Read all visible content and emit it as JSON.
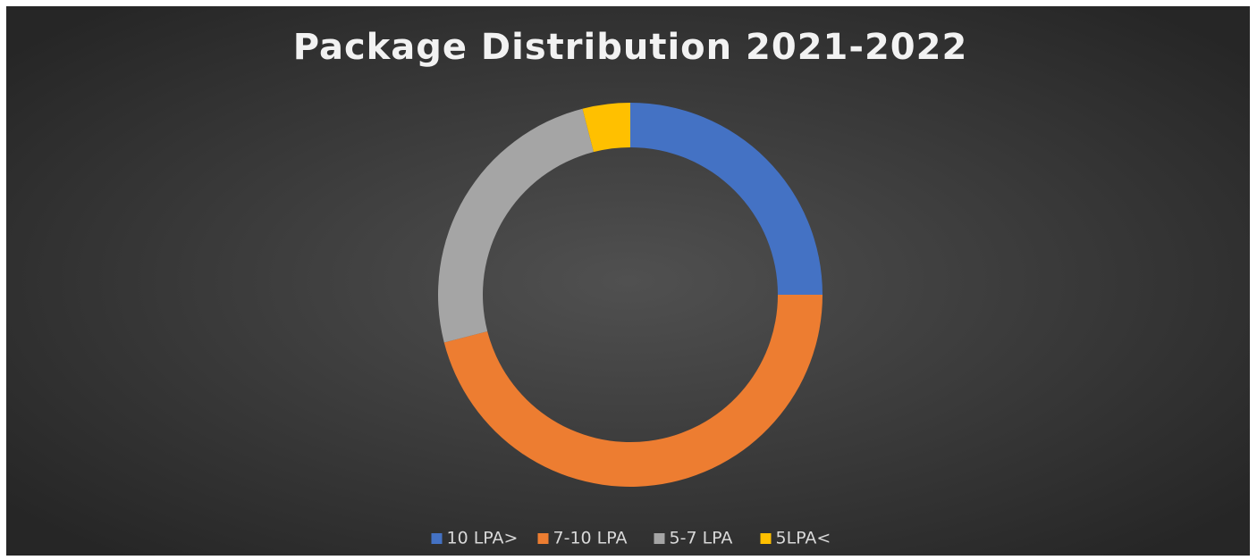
{
  "chart_data": {
    "type": "doughnut",
    "title": "Package Distribution 2021-2022",
    "categories": [
      "10 LPA>",
      "7-10 LPA",
      "5-7 LPA",
      "5LPA<"
    ],
    "values": [
      25,
      46,
      25,
      4
    ],
    "colors": [
      "#4472c4",
      "#ed7d31",
      "#a5a5a5",
      "#ffc000"
    ],
    "legend": "bottom"
  }
}
